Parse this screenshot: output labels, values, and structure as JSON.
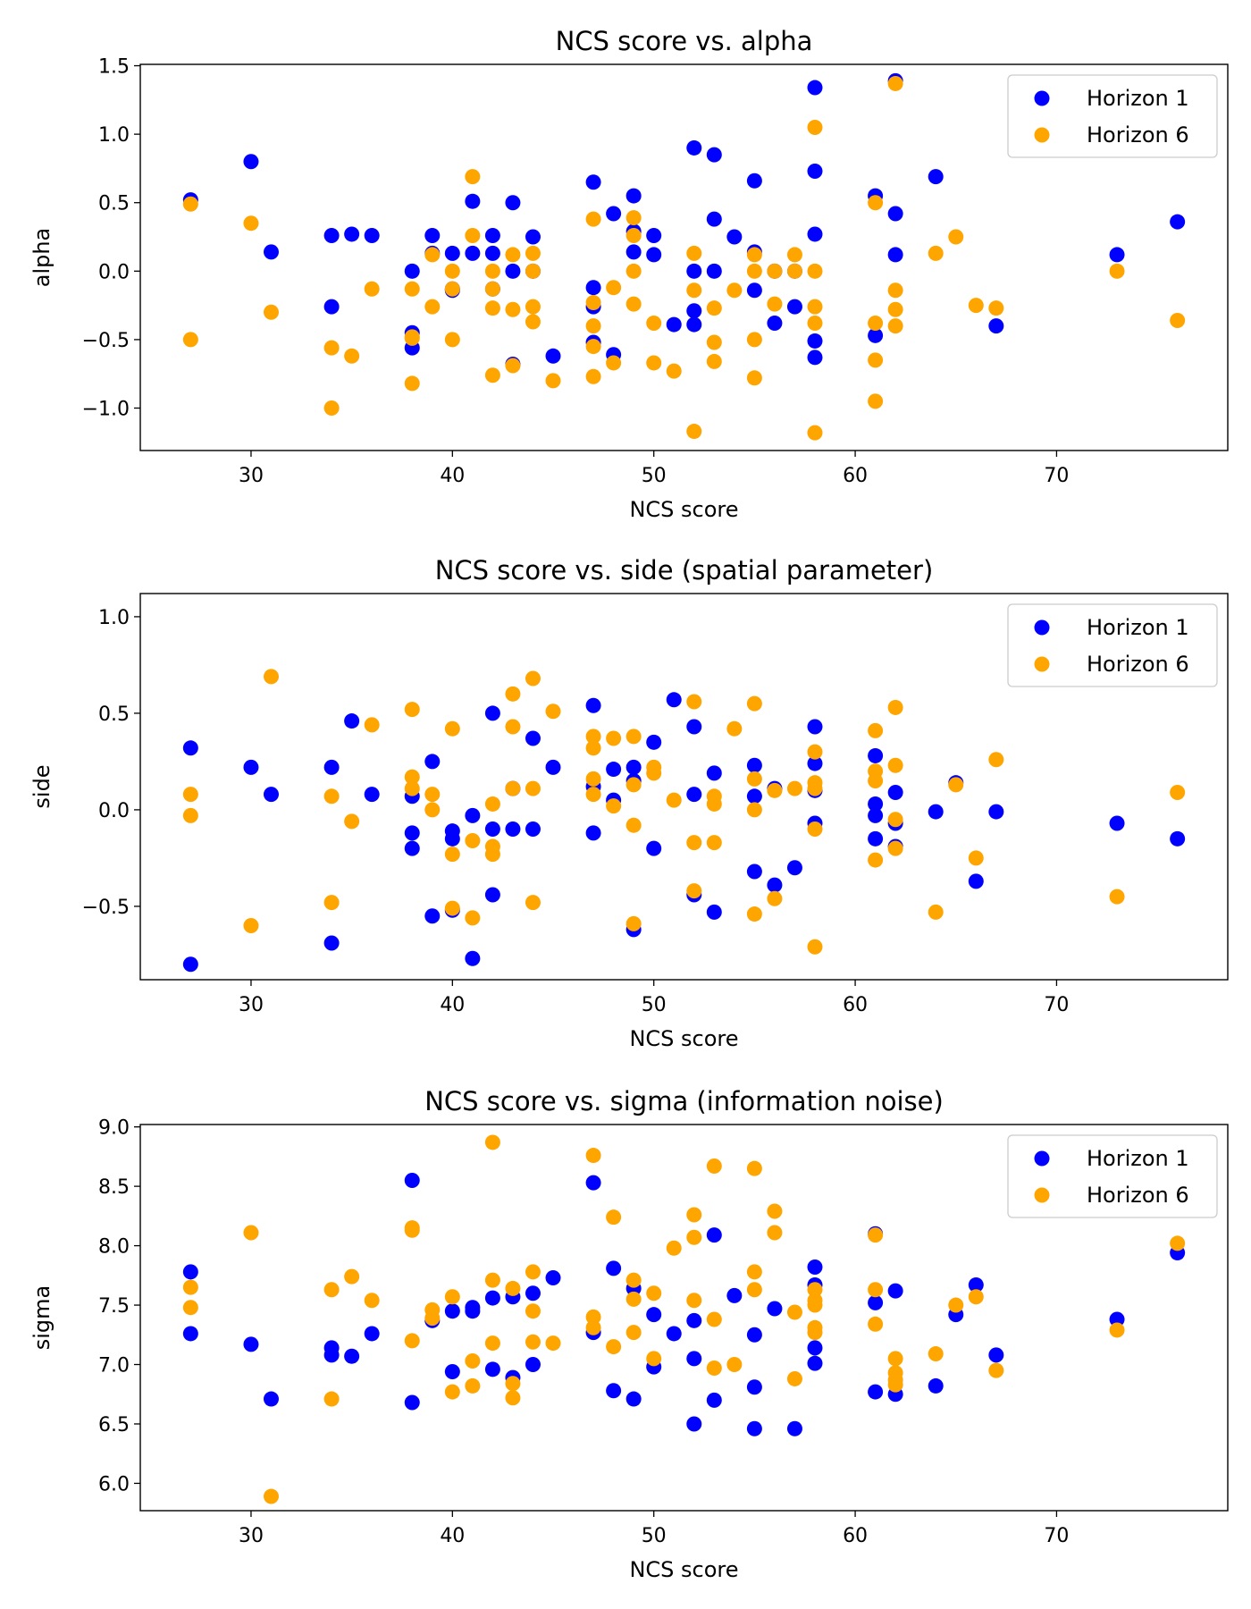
{
  "colors": {
    "horizon_1": "#0000ff",
    "horizon_6": "#ffa500"
  },
  "chart_data": [
    {
      "type": "scatter",
      "title": "NCS score vs. alpha",
      "xlabel": "NCS score",
      "ylabel": "alpha",
      "xlim": [
        24.5,
        78.5
      ],
      "ylim": [
        -1.31,
        1.51
      ],
      "xticks": [
        30,
        40,
        50,
        60,
        70
      ],
      "xtick_labels": [
        "30",
        "40",
        "50",
        "60",
        "70"
      ],
      "yticks": [
        -1.0,
        -0.5,
        0.0,
        0.5,
        1.0,
        1.5
      ],
      "ytick_labels": [
        "−1.0",
        "−0.5",
        "0.0",
        "0.5",
        "1.0",
        "1.5"
      ],
      "grid": false,
      "legend_position": "top-right",
      "series": [
        {
          "name": "Horizon 1",
          "color": "#0000ff",
          "x": [
            27,
            30,
            31,
            34,
            34,
            35,
            36,
            38,
            38,
            38,
            39,
            39,
            40,
            40,
            40,
            41,
            41,
            42,
            42,
            42,
            43,
            43,
            43,
            44,
            44,
            45,
            47,
            47,
            47,
            47,
            48,
            48,
            49,
            49,
            49,
            50,
            50,
            51,
            52,
            52,
            52,
            52,
            53,
            53,
            53,
            54,
            55,
            55,
            55,
            56,
            56,
            57,
            57,
            58,
            58,
            58,
            58,
            58,
            61,
            61,
            62,
            62,
            62,
            64,
            67,
            73,
            76
          ],
          "y": [
            0.52,
            0.8,
            0.14,
            0.26,
            -0.26,
            0.27,
            0.26,
            -0.45,
            -0.56,
            0.0,
            0.26,
            0.13,
            0.13,
            -0.13,
            -0.14,
            0.13,
            0.51,
            0.26,
            0.13,
            -0.13,
            0.0,
            0.5,
            -0.68,
            0.25,
            0.0,
            -0.62,
            0.65,
            -0.26,
            -0.12,
            -0.52,
            0.42,
            -0.61,
            0.55,
            0.14,
            0.29,
            0.26,
            0.12,
            -0.39,
            0.9,
            -0.29,
            -0.39,
            0.0,
            0.85,
            0.0,
            0.38,
            0.25,
            -0.14,
            0.66,
            0.14,
            -0.38,
            0.0,
            -0.26,
            0.0,
            1.34,
            0.73,
            0.27,
            -0.51,
            -0.63,
            0.55,
            -0.47,
            1.39,
            0.42,
            0.12,
            0.69,
            -0.4,
            0.12,
            0.36
          ]
        },
        {
          "name": "Horizon 6",
          "color": "#ffa500",
          "x": [
            27,
            27,
            30,
            31,
            34,
            34,
            35,
            36,
            38,
            38,
            38,
            38,
            39,
            39,
            40,
            40,
            40,
            41,
            41,
            42,
            42,
            42,
            42,
            43,
            43,
            43,
            44,
            44,
            44,
            44,
            45,
            47,
            47,
            47,
            47,
            47,
            48,
            48,
            49,
            49,
            49,
            49,
            50,
            50,
            51,
            52,
            52,
            52,
            53,
            53,
            53,
            54,
            55,
            55,
            55,
            55,
            56,
            56,
            57,
            57,
            58,
            58,
            58,
            58,
            58,
            61,
            61,
            61,
            61,
            62,
            62,
            62,
            62,
            64,
            65,
            66,
            67,
            73,
            76
          ],
          "y": [
            0.49,
            -0.5,
            0.35,
            -0.3,
            -0.56,
            -1.0,
            -0.62,
            -0.13,
            -0.13,
            -0.48,
            -0.82,
            -0.49,
            0.12,
            -0.26,
            -0.5,
            0.0,
            -0.13,
            0.69,
            0.26,
            0.0,
            -0.27,
            -0.76,
            -0.13,
            0.12,
            -0.28,
            -0.69,
            0.0,
            -0.26,
            -0.37,
            0.13,
            -0.8,
            0.38,
            -0.23,
            -0.77,
            -0.55,
            -0.4,
            -0.12,
            -0.67,
            0.39,
            0.26,
            0.0,
            -0.24,
            -0.38,
            -0.67,
            -0.73,
            0.13,
            -0.14,
            -1.17,
            -0.52,
            -0.66,
            -0.27,
            -0.14,
            0.0,
            -0.5,
            -0.78,
            0.12,
            0.0,
            -0.24,
            0.0,
            0.12,
            1.05,
            0.0,
            -0.26,
            -0.38,
            -1.18,
            0.5,
            -0.38,
            -0.65,
            -0.95,
            1.37,
            -0.14,
            -0.28,
            -0.4,
            0.13,
            0.25,
            -0.25,
            -0.27,
            0.0,
            -0.36
          ]
        }
      ]
    },
    {
      "type": "scatter",
      "title": "NCS score vs. side (spatial parameter)",
      "xlabel": "NCS score",
      "ylabel": "side",
      "xlim": [
        24.5,
        78.5
      ],
      "ylim": [
        -0.88,
        1.12
      ],
      "xticks": [
        30,
        40,
        50,
        60,
        70
      ],
      "xtick_labels": [
        "30",
        "40",
        "50",
        "60",
        "70"
      ],
      "yticks": [
        -0.5,
        0.0,
        0.5,
        1.0
      ],
      "ytick_labels": [
        "−0.5",
        "0.0",
        "0.5",
        "1.0"
      ],
      "grid": false,
      "legend_position": "top-right",
      "series": [
        {
          "name": "Horizon 1",
          "color": "#0000ff",
          "x": [
            27,
            27,
            30,
            31,
            34,
            34,
            35,
            36,
            38,
            38,
            38,
            39,
            39,
            40,
            40,
            40,
            41,
            41,
            42,
            42,
            42,
            43,
            43,
            44,
            44,
            45,
            47,
            47,
            47,
            48,
            48,
            49,
            49,
            49,
            50,
            50,
            51,
            52,
            52,
            52,
            53,
            53,
            55,
            55,
            55,
            56,
            56,
            57,
            58,
            58,
            58,
            58,
            61,
            61,
            61,
            61,
            62,
            62,
            62,
            64,
            65,
            66,
            67,
            73,
            76
          ],
          "y": [
            0.32,
            -0.8,
            0.22,
            0.08,
            0.22,
            -0.69,
            0.46,
            0.08,
            0.07,
            -0.12,
            -0.2,
            0.25,
            -0.55,
            -0.11,
            -0.15,
            -0.52,
            -0.03,
            -0.77,
            0.5,
            -0.1,
            -0.44,
            0.11,
            -0.1,
            0.37,
            -0.1,
            0.22,
            0.54,
            0.12,
            -0.12,
            0.21,
            0.05,
            0.22,
            0.15,
            -0.62,
            0.35,
            -0.2,
            0.57,
            0.43,
            0.08,
            -0.44,
            0.19,
            -0.53,
            0.23,
            0.07,
            -0.32,
            0.11,
            -0.39,
            -0.3,
            0.43,
            0.24,
            -0.07,
            0.1,
            0.28,
            0.03,
            -0.03,
            -0.15,
            0.09,
            -0.07,
            -0.19,
            -0.01,
            0.14,
            -0.37,
            -0.01,
            -0.07,
            -0.15
          ]
        },
        {
          "name": "Horizon 6",
          "color": "#ffa500",
          "x": [
            27,
            27,
            30,
            31,
            34,
            34,
            35,
            36,
            38,
            38,
            38,
            39,
            39,
            40,
            40,
            40,
            41,
            41,
            42,
            42,
            42,
            43,
            43,
            43,
            44,
            44,
            44,
            45,
            47,
            47,
            47,
            47,
            48,
            48,
            49,
            49,
            49,
            49,
            50,
            50,
            51,
            52,
            52,
            52,
            53,
            53,
            53,
            54,
            55,
            55,
            55,
            55,
            56,
            56,
            57,
            58,
            58,
            58,
            58,
            58,
            61,
            61,
            61,
            61,
            62,
            62,
            62,
            62,
            64,
            65,
            66,
            67,
            73,
            76
          ],
          "y": [
            0.08,
            -0.03,
            -0.6,
            0.69,
            0.07,
            -0.48,
            -0.06,
            0.44,
            0.52,
            0.17,
            0.11,
            0.08,
            0.0,
            0.42,
            -0.23,
            -0.51,
            -0.16,
            -0.56,
            0.03,
            -0.19,
            -0.23,
            0.6,
            0.43,
            0.11,
            0.68,
            0.11,
            -0.48,
            0.51,
            0.38,
            0.32,
            0.16,
            0.08,
            0.37,
            0.02,
            0.38,
            0.13,
            -0.08,
            -0.59,
            0.22,
            0.19,
            0.05,
            0.56,
            -0.17,
            -0.42,
            0.07,
            0.03,
            -0.17,
            0.42,
            0.55,
            0.16,
            0.0,
            -0.54,
            0.1,
            -0.46,
            0.11,
            0.3,
            0.14,
            0.11,
            -0.1,
            -0.71,
            0.41,
            0.2,
            0.15,
            -0.26,
            0.53,
            0.23,
            -0.05,
            -0.2,
            -0.53,
            0.13,
            -0.25,
            0.26,
            -0.45,
            0.09
          ]
        }
      ]
    },
    {
      "type": "scatter",
      "title": "NCS score vs. sigma (information noise)",
      "xlabel": "NCS score",
      "ylabel": "sigma",
      "xlim": [
        24.5,
        78.5
      ],
      "ylim": [
        5.77,
        9.02
      ],
      "xticks": [
        30,
        40,
        50,
        60,
        70
      ],
      "xtick_labels": [
        "30",
        "40",
        "50",
        "60",
        "70"
      ],
      "yticks": [
        6.0,
        6.5,
        7.0,
        7.5,
        8.0,
        8.5,
        9.0
      ],
      "ytick_labels": [
        "6.0",
        "6.5",
        "7.0",
        "7.5",
        "8.0",
        "8.5",
        "9.0"
      ],
      "grid": false,
      "legend_position": "top-right",
      "series": [
        {
          "name": "Horizon 1",
          "color": "#0000ff",
          "x": [
            27,
            27,
            30,
            31,
            34,
            34,
            35,
            36,
            38,
            38,
            39,
            40,
            40,
            41,
            41,
            42,
            42,
            43,
            43,
            44,
            44,
            45,
            47,
            47,
            48,
            48,
            49,
            49,
            50,
            50,
            51,
            52,
            52,
            52,
            53,
            53,
            54,
            55,
            55,
            55,
            56,
            57,
            58,
            58,
            58,
            58,
            61,
            61,
            61,
            62,
            62,
            64,
            65,
            66,
            67,
            73,
            76
          ],
          "y": [
            7.78,
            7.26,
            7.17,
            6.71,
            7.14,
            7.08,
            7.07,
            7.26,
            8.55,
            6.68,
            7.37,
            7.45,
            6.94,
            7.48,
            7.45,
            7.56,
            6.96,
            7.57,
            6.89,
            7.6,
            7.0,
            7.73,
            8.53,
            7.27,
            7.81,
            6.78,
            7.64,
            6.71,
            7.42,
            6.98,
            7.26,
            7.37,
            7.05,
            6.5,
            8.09,
            6.7,
            7.58,
            7.25,
            6.81,
            6.46,
            7.47,
            6.46,
            7.82,
            7.67,
            7.14,
            7.01,
            8.1,
            7.52,
            6.77,
            7.62,
            6.75,
            6.82,
            7.42,
            7.67,
            7.08,
            7.38,
            7.94
          ]
        },
        {
          "name": "Horizon 6",
          "color": "#ffa500",
          "x": [
            27,
            27,
            30,
            31,
            34,
            34,
            35,
            36,
            38,
            38,
            38,
            39,
            39,
            40,
            40,
            41,
            41,
            42,
            42,
            42,
            43,
            43,
            43,
            44,
            44,
            44,
            45,
            47,
            47,
            47,
            48,
            48,
            49,
            49,
            49,
            50,
            50,
            51,
            52,
            52,
            52,
            53,
            53,
            53,
            54,
            55,
            55,
            55,
            56,
            56,
            57,
            57,
            58,
            58,
            58,
            58,
            58,
            61,
            61,
            61,
            62,
            62,
            62,
            62,
            64,
            65,
            66,
            67,
            73,
            76
          ],
          "y": [
            7.65,
            7.48,
            8.11,
            5.89,
            7.63,
            6.71,
            7.74,
            7.54,
            8.15,
            7.2,
            8.13,
            7.46,
            7.39,
            7.57,
            6.77,
            7.03,
            6.82,
            8.87,
            7.71,
            7.18,
            7.64,
            6.84,
            6.72,
            7.78,
            7.45,
            7.19,
            7.18,
            8.76,
            7.4,
            7.31,
            8.24,
            7.15,
            7.71,
            7.55,
            7.27,
            7.6,
            7.05,
            7.98,
            8.26,
            8.07,
            7.54,
            8.67,
            7.38,
            6.97,
            7.0,
            8.65,
            7.78,
            7.63,
            8.29,
            8.11,
            7.44,
            6.88,
            7.63,
            7.54,
            7.31,
            7.27,
            7.5,
            7.63,
            7.34,
            8.09,
            7.05,
            6.93,
            6.87,
            6.83,
            7.09,
            7.5,
            7.57,
            6.95,
            7.29,
            8.02
          ]
        }
      ]
    }
  ]
}
